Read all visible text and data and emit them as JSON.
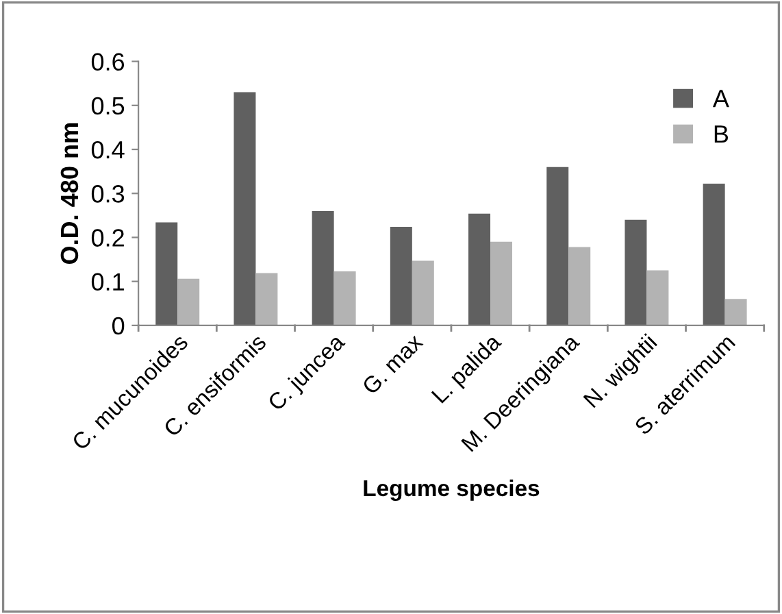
{
  "chart_data": {
    "type": "bar",
    "xlabel": "Legume species",
    "ylabel": "O.D. 480 nm",
    "categories": [
      "C. mucunoides",
      "C. ensiformis",
      "C. juncea",
      "G. max",
      "L. palida",
      "M. Deeringiana",
      "N. wightii",
      "S. aterrimum"
    ],
    "series": [
      {
        "name": "A",
        "color": "#606060",
        "values": [
          0.234,
          0.53,
          0.26,
          0.224,
          0.254,
          0.36,
          0.24,
          0.322
        ]
      },
      {
        "name": "B",
        "color": "#b3b3b3",
        "values": [
          0.106,
          0.119,
          0.123,
          0.147,
          0.19,
          0.178,
          0.125,
          0.06
        ]
      }
    ],
    "ylim": [
      0,
      0.6
    ],
    "yticks": [
      {
        "value": 0,
        "label": "0"
      },
      0.1,
      0.2,
      0.3,
      0.4,
      0.5,
      0.6
    ],
    "grid": false,
    "legend": "top right"
  }
}
